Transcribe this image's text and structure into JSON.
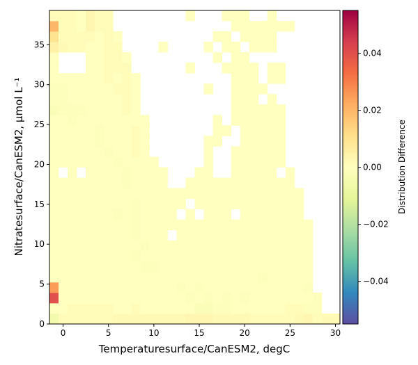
{
  "chart_data": {
    "type": "heatmap",
    "xlabel": "Temperaturesurface/CanESM2,  degC",
    "ylabel": "Nitratesurface/CanESM2,  μmol L⁻¹",
    "xlim": [
      -1.5,
      30.5
    ],
    "ylim": [
      0,
      39.3
    ],
    "x_ticks": [
      0,
      5,
      10,
      15,
      20,
      25,
      30
    ],
    "y_ticks": [
      0,
      5,
      10,
      15,
      20,
      25,
      30,
      35
    ],
    "x_bin_start": -1.5,
    "x_bin_width": 1.0,
    "y_bin_start": 0,
    "y_bin_width": 1.31,
    "colorbar": {
      "label": "Distribution Difference",
      "range": [
        -0.055,
        0.055
      ],
      "ticks": [
        -0.04,
        -0.02,
        0.0,
        0.02,
        0.04
      ],
      "tick_labels": [
        "−0.04",
        "−0.02",
        "0.00",
        "0.02",
        "0.04"
      ],
      "colormap": "Spectral_r"
    },
    "value_scale": 0.001,
    "rows_bottom_to_top": [
      "-5 1 1 1 1 1 1 2 2 2 2 2 2 2 2 3 3 3 2 2 2 2 1 1 1 1 1 2 3 1 2 2",
      " 0 0 1 1 1 1 1 0 0 1 0 0 0 0 0 0-2-2-1-1 0 0 0 0 0 0 1 1-1-1 . .",
      "40 0 0 0 0 0 0 0 0 0 0 0 0 0 0-1 0-1 0-1 0-1 0 0 0 0 0 0 0-1 . .",
      "25 0 0 0 0 0 0 0 0 0 0 0 0 0-1 0-1 0 0 0 0 0 0 0 0 0 0 0-1 . . .",
      " 0 0 0 0 0 0 0 0 0 0 0 0 0 0 0 0 0 0 0 0 0 0 0-1 0 0 0 0 0 . . .",
      " 0 0 0 0 0 0 0 0 0 0-1-1 0 0 0 0 0 0 0 0 0 0 0 0 0 0 0 0 0 . . .",
      " 0 0 0 0 0 0 0 0 0-1 0 0 0 0 0 0 0 0 0 0 0 0 0 0 0 0 0 0 0 . . .",
      " 0 0 0 0 0 0 0 0 0 0-1 0 0 0 0 0 0 0 0 0 0 0 0 0 0 0 0 0 0 . . .",
      " 0 0 0 0 0 0 0 0 0-1 0 0 0 . 0 0 0 0 0 0 0 0 0 0 0 0 0 0 0 . . .",
      " 0 0 0 0 0 0 0 0 0-1 0 0 0 0 0 0 0 0 0 0 0 0 0 0 0 0 0 0 0 . . .",
      " 0 0 0 0 0 0 0-1 0-1 0 0 0 0 . 0 . 0 0 0 . 0 0 0 0 0 0 0 . . . .",
      " 0 0 0 0 0 0 0 0 0-1 0 0 0 0 0 . 0 0 0 0 0 0 0 0 0 0 0 0 . . . .",
      " 0 0 0 0 0 0 0 0 0 0 0 0 0 0 0 0 0 0 0 0 0 0 0 0 0 0 0 0 . . . .",
      " 0 0 0 0 0 0 0 0-1 0 0 0 0 . . 0 0 0 0 0 0 0 0 0 0 0 0 . . . . .",
      " 0 . 0 . 0 0 0 0-1 0 0 0 0 . . . 0 0 . . 0 0 0 0 0 . 0 . . . . .",
      " 0 0 0 0 0 0 0-1 0 0 0 0 . . . . . 0 . . 0 0 0 0 0 0 . . . . . .",
      " 0 0 0 0 0 0-1 0 0 1 0 . . . . . . 0 . . 0 0 0 0 0 0 . . . . . .",
      " 0 0 0 0 0-1 0 0 0 1 0 . . . . . . 0 0 . . 0 0 0 0 0 . . . . . .",
      " 0 0 0 0 0-1 0 0 0 1 0 . . . . . . . 0 0 . 0 0 0 0 0 . . . . . .",
      " 0 0-1 0 0 0 0 0 0 0 0 . . . . . . . 0 . 0 0 0 0 0 0 . . . . . .",
      "-2-1-1-1 0 0 0 0 1 0 . . . . . . . . . . 0 0 0 0 0 0 . . . . . .",
      "-1-1 0 0 0 0 0 0 1 0 . . . . . . . . . . 0 0 0 . 0 . . . . . . .",
      "-1-1 0 0 0 0 0 1 1 0 . . . . . . . 0 . . 0 0 0 0 . . . . . . . .",
      " 0 0 0 0 0 0 1 0 1 0 . . . . . . . . . . 0 0 0 . 0 0 . . . . . .",
      " 0 . . . 0 0 1 1 1 . . . . . . 0 . . . 0 0 0 0 . 0 0 . . . . . .",
      " 0 . . . 0 0 1 1 0 . . . . . . . . . 0 . 0 0 . . . . . . . . . .",
      " 5 2 1 1 0 0 1 1 . . . . 0 . . . . 0 . 0 0 . 0 0 0 . . . . . . .",
      "10 1 1 1 1 0 1 0 . . . . . . . . . . 0 0 . 0 0 0 0 . . . . . . .",
      "20 1 1 0 3 1 1 . . . . . . . . . . . . . 0 0 0 0 0 0 0 . . . . .",
      " 1 1 1 0 3 1 1 . . . . . . . . 0 . . . 0 0 0 . . 0 . . . . . . .",
      " 4 3 1 1 1 2 2 . . . . . . . . 0 . . 0 0 0 0 . . 0 . . . . . . .",
      " 3 6 6 6 6 2 1 . . . . . . . . . . . . 0 0 0 . . 0 . . . . . . ."
    ]
  }
}
